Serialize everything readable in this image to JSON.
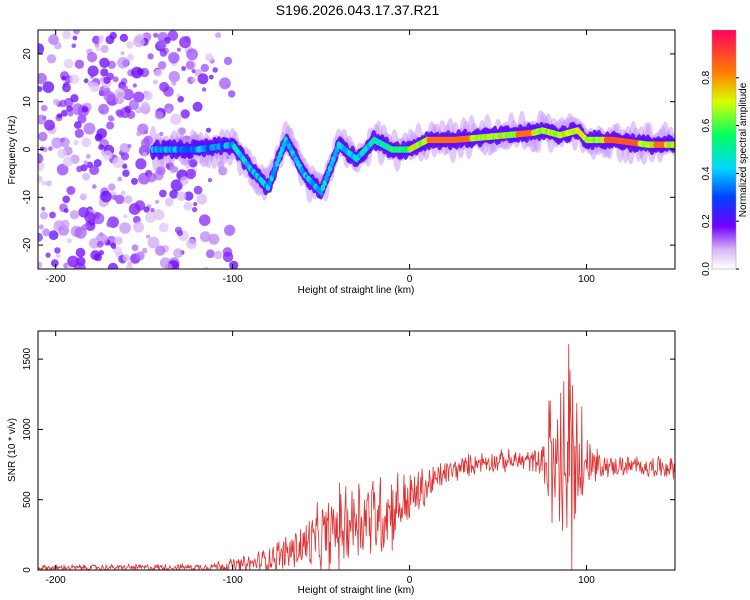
{
  "title": "S196.2026.043.17.37.R21",
  "chart_data": [
    {
      "type": "heatmap",
      "title": "S196.2026.043.17.37.R21",
      "xlabel": "Height of straight line (km)",
      "ylabel": "Frequency (Hz)",
      "xlim": [
        -210,
        150
      ],
      "ylim": [
        -25,
        25
      ],
      "xticks": [
        "-200",
        "-100",
        "0",
        "100"
      ],
      "xtick_values": [
        -200,
        -100,
        0,
        100
      ],
      "yticks": [
        "-20",
        "-10",
        "0",
        "10",
        "20"
      ],
      "ytick_values": [
        -20,
        -10,
        0,
        10,
        20
      ],
      "colorbar": {
        "label": "Normalized spectral amplitude",
        "range": [
          0,
          1
        ],
        "ticks": [
          "0.0",
          "0.2",
          "0.4",
          "0.6",
          "0.8"
        ],
        "tick_values": [
          0.0,
          0.2,
          0.4,
          0.6,
          0.8
        ]
      },
      "ridge": [
        {
          "x": -140,
          "f": 0
        },
        {
          "x": -120,
          "f": 0
        },
        {
          "x": -100,
          "f": 1
        },
        {
          "x": -90,
          "f": -4
        },
        {
          "x": -80,
          "f": -8
        },
        {
          "x": -70,
          "f": 2
        },
        {
          "x": -60,
          "f": -5
        },
        {
          "x": -50,
          "f": -9
        },
        {
          "x": -40,
          "f": 1
        },
        {
          "x": -30,
          "f": -2
        },
        {
          "x": -20,
          "f": 2
        },
        {
          "x": -10,
          "f": 0
        },
        {
          "x": 0,
          "f": 0
        },
        {
          "x": 10,
          "f": 2
        },
        {
          "x": 25,
          "f": 2
        },
        {
          "x": 40,
          "f": 2.5
        },
        {
          "x": 55,
          "f": 3
        },
        {
          "x": 70,
          "f": 3.5
        },
        {
          "x": 75,
          "f": 4
        },
        {
          "x": 85,
          "f": 3
        },
        {
          "x": 95,
          "f": 4
        },
        {
          "x": 100,
          "f": 2
        },
        {
          "x": 115,
          "f": 2
        },
        {
          "x": 135,
          "f": 1
        },
        {
          "x": 150,
          "f": 1
        }
      ]
    },
    {
      "type": "line",
      "xlabel": "Height of straight line (km)",
      "ylabel": "SNR (10 * v/v)",
      "xlim": [
        -210,
        150
      ],
      "ylim": [
        0,
        1700
      ],
      "xticks": [
        "-200",
        "-100",
        "0",
        "100"
      ],
      "xtick_values": [
        -200,
        -100,
        0,
        100
      ],
      "yticks": [
        "0",
        "500",
        "1000",
        "1500"
      ],
      "ytick_values": [
        0,
        500,
        1000,
        1500
      ],
      "series": [
        {
          "name": "SNR",
          "color": "#e03030",
          "envelope": [
            {
              "x": -210,
              "base": 15,
              "amp": 25
            },
            {
              "x": -120,
              "base": 20,
              "amp": 30
            },
            {
              "x": -90,
              "base": 40,
              "amp": 80
            },
            {
              "x": -70,
              "base": 120,
              "amp": 160
            },
            {
              "x": -50,
              "base": 220,
              "amp": 300
            },
            {
              "x": -30,
              "base": 380,
              "amp": 400
            },
            {
              "x": -15,
              "base": 400,
              "amp": 380
            },
            {
              "x": 0,
              "base": 500,
              "amp": 250
            },
            {
              "x": 20,
              "base": 690,
              "amp": 110
            },
            {
              "x": 40,
              "base": 770,
              "amp": 90
            },
            {
              "x": 75,
              "base": 780,
              "amp": 100
            },
            {
              "x": 80,
              "base": 700,
              "amp": 600
            },
            {
              "x": 90,
              "base": 650,
              "amp": 900
            },
            {
              "x": 100,
              "base": 720,
              "amp": 300
            },
            {
              "x": 110,
              "base": 740,
              "amp": 90
            },
            {
              "x": 150,
              "base": 730,
              "amp": 90
            }
          ]
        }
      ]
    }
  ]
}
